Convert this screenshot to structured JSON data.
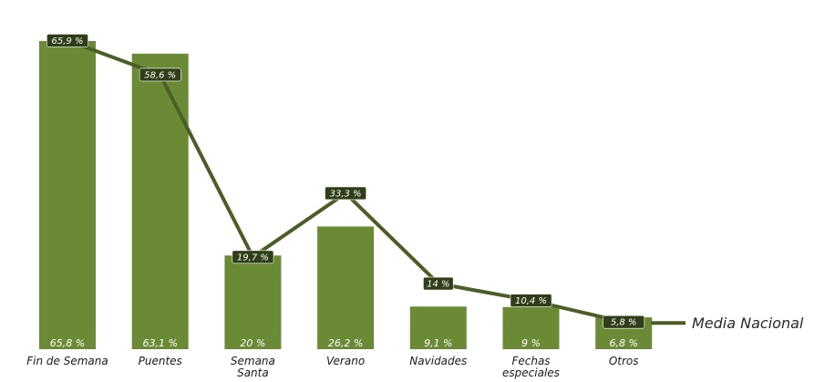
{
  "chart_data": {
    "type": "bar",
    "categories": [
      "Fin de Semana",
      "Puentes",
      "Semana Santa",
      "Verano",
      "Navidades",
      "Fechas especiales",
      "Otros"
    ],
    "series": [
      {
        "type": "bar",
        "values": [
          65.8,
          63.1,
          20,
          26.2,
          9.1,
          9,
          6.8
        ],
        "labels": [
          "65,8 %",
          "63,1 %",
          "20 %",
          "26,2 %",
          "9,1  %",
          "9 %",
          "6,8 %"
        ],
        "color": "#6b8a35"
      },
      {
        "type": "line",
        "name": "Media Nacional",
        "values": [
          65.9,
          58.6,
          19.7,
          33.3,
          14,
          10.4,
          5.8
        ],
        "labels": [
          "65,9 %",
          "58,6 %",
          "19,7 %",
          "33,3 %",
          "14 %",
          "10,4 %",
          "5,8  %"
        ],
        "color": "#4a5e26",
        "label_bg": "#2f3e18"
      }
    ],
    "category_lines": [
      [
        "Fin de Semana"
      ],
      [
        "Puentes"
      ],
      [
        "Semana",
        "Santa"
      ],
      [
        "Verano"
      ],
      [
        "Navidades"
      ],
      [
        "Fechas",
        "especiales"
      ],
      [
        "Otros"
      ]
    ],
    "ylim": [
      0,
      70
    ],
    "grid": false,
    "legend": "right"
  }
}
